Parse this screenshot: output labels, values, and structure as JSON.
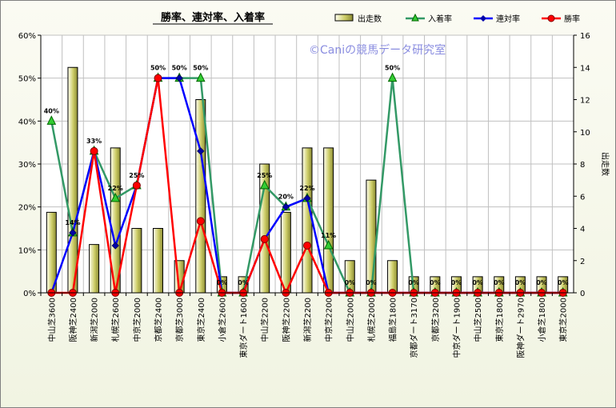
{
  "chart_data": {
    "type": "bar",
    "title": "勝率、連対率、入着率",
    "watermark": "©Caniの競馬データ研究室",
    "y2label": "出走数",
    "ylim": [
      0,
      60
    ],
    "yticks": [
      "0%",
      "10%",
      "20%",
      "30%",
      "40%",
      "50%",
      "60%"
    ],
    "y2lim": [
      0,
      16
    ],
    "y2ticks": [
      "0",
      "2",
      "4",
      "6",
      "8",
      "10",
      "12",
      "14",
      "16"
    ],
    "grid": true,
    "legend_position": "top-right",
    "categories": [
      "中山芝3600",
      "阪神芝2400",
      "新潟芝2000",
      "札幌芝2600",
      "中京芝2000",
      "京都芝2400",
      "京都芝3000",
      "東京芝2400",
      "小倉芝2600",
      "東京ダート1600",
      "中山芝2200",
      "阪神芝2200",
      "新潟芝2200",
      "中京芝2200",
      "中山芝2000",
      "札幌芝2000",
      "福島芝1800",
      "京都ダート3170",
      "京都芝3200",
      "中京ダート1900",
      "中山芝2500",
      "東京芝1800",
      "阪神ダート2970",
      "小倉芝1800",
      "東京芝2000"
    ],
    "series": [
      {
        "name": "出走数",
        "kind": "bar",
        "axis": "right",
        "color": "#cccc66",
        "values": [
          5,
          14,
          3,
          9,
          4,
          4,
          2,
          12,
          1,
          1,
          8,
          5,
          9,
          9,
          2,
          7,
          2,
          1,
          1,
          1,
          1,
          1,
          1,
          1,
          1
        ]
      },
      {
        "name": "入着率",
        "kind": "line",
        "axis": "left",
        "color": "#339966",
        "marker": "triangle",
        "values": [
          40,
          14,
          33,
          22,
          25,
          50,
          50,
          50,
          0,
          0,
          25,
          20,
          22,
          11,
          0,
          0,
          50,
          0,
          0,
          0,
          0,
          0,
          0,
          0,
          0
        ]
      },
      {
        "name": "連対率",
        "kind": "line",
        "axis": "left",
        "color": "#0000ff",
        "marker": "diamond",
        "values": [
          0,
          14,
          33,
          11,
          25,
          50,
          50,
          33,
          0,
          0,
          12.5,
          20,
          22,
          0,
          0,
          0,
          0,
          0,
          0,
          0,
          0,
          0,
          0,
          0,
          0
        ]
      },
      {
        "name": "勝率",
        "kind": "line",
        "axis": "left",
        "color": "#ff0000",
        "marker": "circle",
        "values": [
          0,
          0,
          33,
          0,
          25,
          50,
          0,
          16.7,
          0,
          0,
          12.5,
          0,
          11,
          0,
          0,
          0,
          0,
          0,
          0,
          0,
          0,
          0,
          0,
          0,
          0
        ]
      }
    ],
    "data_labels": [
      "40%",
      "14%",
      "33%",
      "22%",
      "25%",
      "50%",
      "50%",
      "50%",
      "0%",
      "0%",
      "25%",
      "20%",
      "22%",
      "11%",
      "0%",
      "0%",
      "50%",
      "0%",
      "0%",
      "0%",
      "0%",
      "0%",
      "0%",
      "0%",
      "0%"
    ]
  }
}
